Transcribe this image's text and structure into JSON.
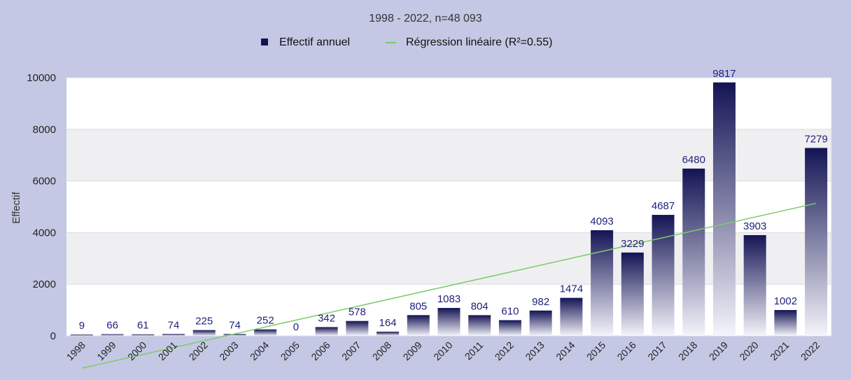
{
  "chart_data": {
    "type": "bar",
    "title": "1998 - 2022, n=48 093",
    "ylabel": "Effectif",
    "xlabel": "",
    "categories": [
      "1998",
      "1999",
      "2000",
      "2001",
      "2002",
      "2003",
      "2004",
      "2005",
      "2006",
      "2007",
      "2008",
      "2009",
      "2010",
      "2011",
      "2012",
      "2013",
      "2014",
      "2015",
      "2016",
      "2017",
      "2018",
      "2019",
      "2020",
      "2021",
      "2022"
    ],
    "series": [
      {
        "name": "Effectif annuel",
        "type": "bar",
        "values": [
          9,
          66,
          61,
          74,
          225,
          74,
          252,
          0,
          342,
          578,
          164,
          805,
          1083,
          804,
          610,
          982,
          1474,
          4093,
          3229,
          4687,
          6480,
          9817,
          3903,
          1002,
          7279
        ]
      },
      {
        "name": "Régression linéaire (R²=0.55)",
        "type": "line",
        "values": [
          -1250,
          -984,
          -718,
          -452,
          -186,
          80,
          346,
          612,
          878,
          1144,
          1410,
          1676,
          1942,
          2208,
          2474,
          2740,
          3006,
          3272,
          3538,
          3804,
          4070,
          4336,
          4602,
          4868,
          5134
        ]
      }
    ],
    "ylim": [
      0,
      10000
    ],
    "yticks": [
      0,
      2000,
      4000,
      6000,
      8000,
      10000
    ],
    "grid": true,
    "legend_position": "top-center",
    "colors": {
      "background": "#c5c8e4",
      "plot_band_light": "#ffffff",
      "plot_band_dark": "#efeff1",
      "bar_top": "#141455",
      "bar_bottom": "#f4f4fb",
      "regression": "#7ccc6a",
      "data_label": "#1f1f7a"
    }
  }
}
